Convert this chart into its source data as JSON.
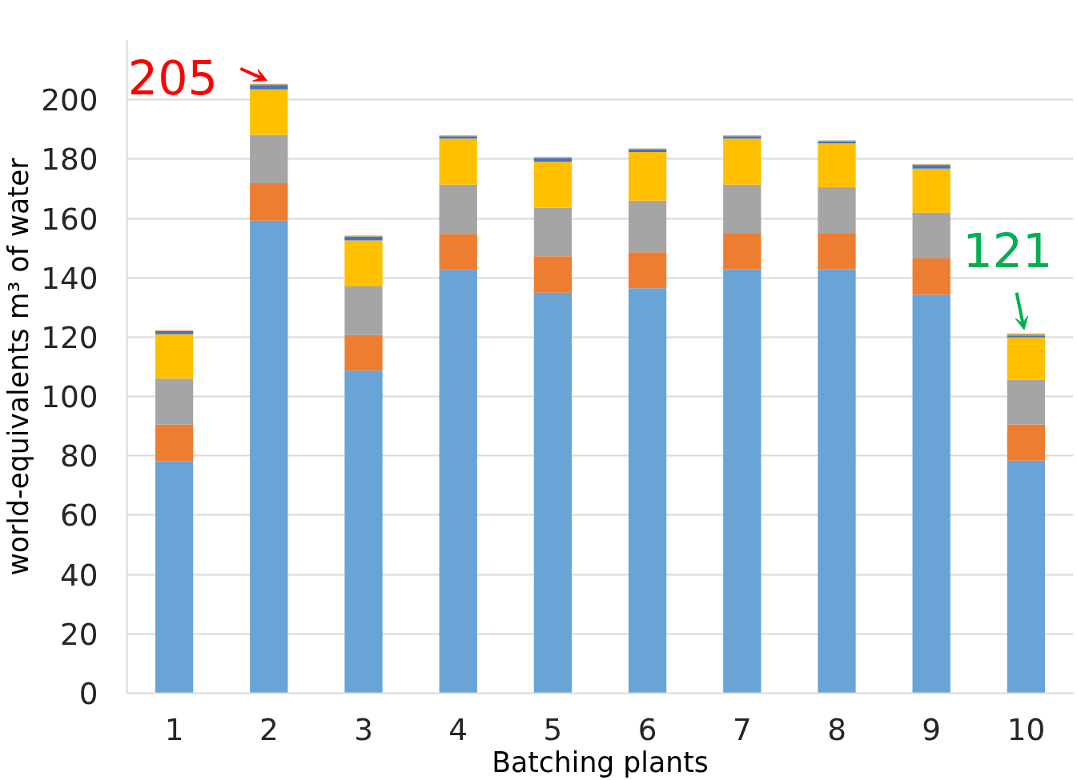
{
  "chart_data": {
    "type": "bar",
    "stacked": true,
    "xlabel": "Batching plants",
    "ylabel": "world-equivalents m³ of water",
    "categories": [
      "1",
      "2",
      "3",
      "4",
      "5",
      "6",
      "7",
      "8",
      "9",
      "10"
    ],
    "series": [
      {
        "color": "#68a4d6",
        "values": [
          78.2,
          159.3,
          108.7,
          142.7,
          135.0,
          136.5,
          142.9,
          142.9,
          134.3,
          78.4
        ]
      },
      {
        "color": "#ed7d31",
        "values": [
          12.3,
          12.6,
          12.0,
          12.1,
          12.3,
          12.1,
          12.0,
          12.0,
          12.2,
          12.2
        ]
      },
      {
        "color": "#a5a5a5",
        "values": [
          15.5,
          16.3,
          16.4,
          16.6,
          16.3,
          17.4,
          16.5,
          15.7,
          15.5,
          15.0
        ]
      },
      {
        "color": "#ffc000",
        "values": [
          15.0,
          15.3,
          15.5,
          15.5,
          15.5,
          16.4,
          15.5,
          14.7,
          14.8,
          14.3
        ]
      },
      {
        "color": "#4472c4",
        "values": [
          1.0,
          1.5,
          1.3,
          0.8,
          1.3,
          0.9,
          0.8,
          0.7,
          1.2,
          0.7
        ]
      },
      {
        "color": "#c2a56a",
        "values": [
          0.3,
          0.4,
          0.3,
          0.3,
          0.3,
          0.3,
          0.3,
          0.3,
          0.3,
          0.6
        ]
      }
    ],
    "ylim": [
      0,
      220
    ],
    "yticks": [
      0,
      20,
      40,
      60,
      80,
      100,
      120,
      140,
      160,
      180,
      200
    ],
    "grid": "y",
    "annotations": [
      {
        "text": "205",
        "x": "2",
        "y": 205
      },
      {
        "text": "121",
        "x": "10",
        "y": 121
      }
    ]
  }
}
